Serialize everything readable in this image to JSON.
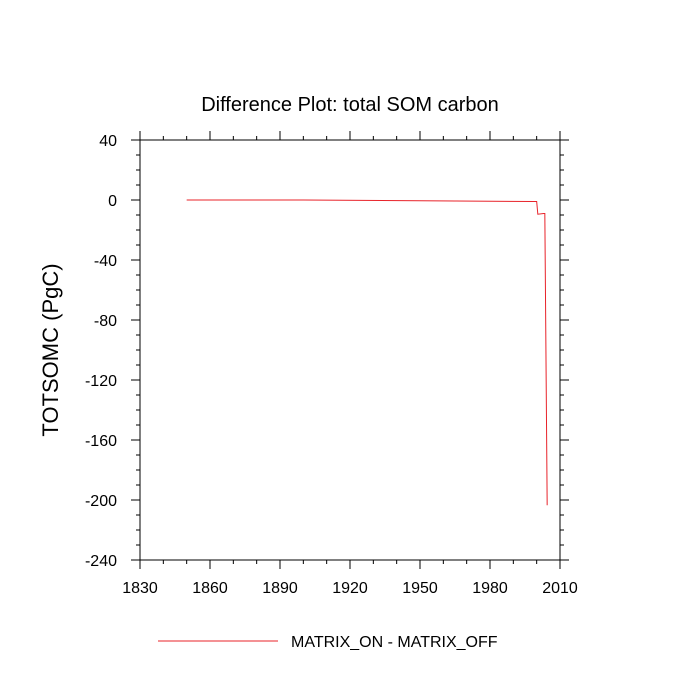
{
  "chart_data": {
    "type": "line",
    "title": "Difference Plot: total SOM carbon",
    "xlabel": "",
    "ylabel": "TOTSOMC  (PgC)",
    "xlim": [
      1830,
      2010
    ],
    "ylim": [
      -240,
      40
    ],
    "xticks": [
      1830,
      1860,
      1890,
      1920,
      1950,
      1980,
      2010
    ],
    "yticks": [
      40,
      0,
      -40,
      -80,
      -120,
      -160,
      -200,
      -240
    ],
    "x_minor_step": 10,
    "y_minor_step": 10,
    "grid": false,
    "legend_position": "bottom-center",
    "series": [
      {
        "name": "MATRIX_ON - MATRIX_OFF",
        "color": "#e8232a",
        "x": [
          1850,
          1900,
          1950,
          1999,
          2000,
          2000.5,
          2003,
          2003.5,
          2004.5
        ],
        "y": [
          0,
          0,
          -0.5,
          -1,
          -1,
          -9.5,
          -9,
          -9,
          -203.5
        ]
      }
    ]
  }
}
